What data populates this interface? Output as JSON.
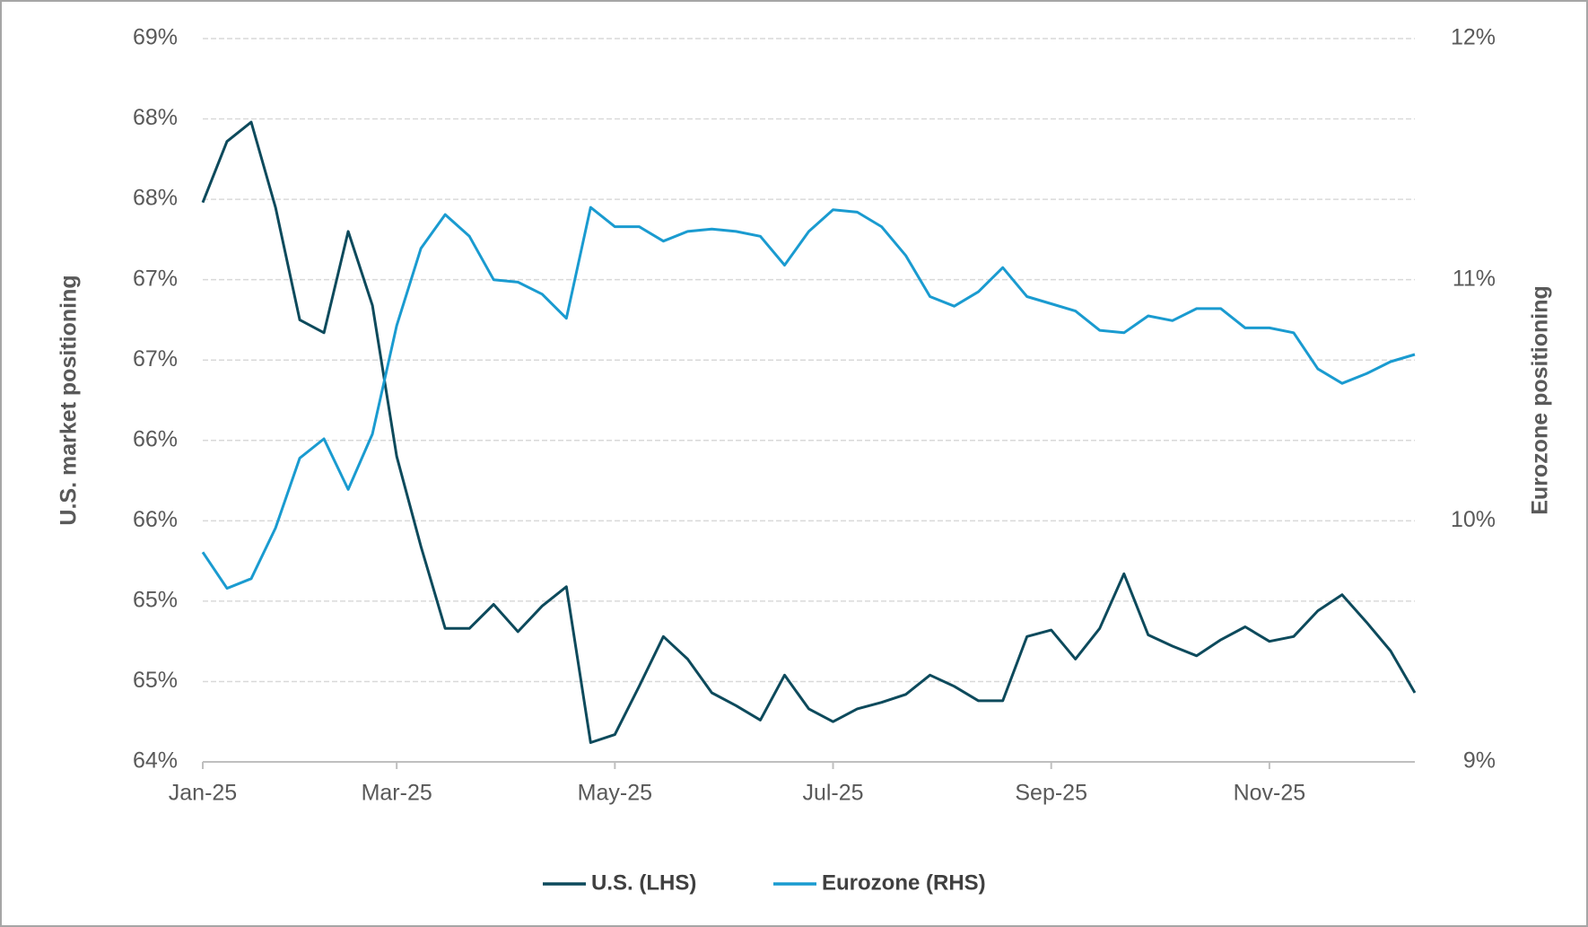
{
  "chart_data": {
    "type": "line",
    "y_label": "U.S. market positioning",
    "y2_label": "Eurozone positioning",
    "categories": [
      "Jan-25",
      null,
      null,
      null,
      null,
      null,
      null,
      null,
      "Mar-25",
      null,
      null,
      null,
      null,
      null,
      null,
      null,
      null,
      "May-25",
      null,
      null,
      null,
      null,
      null,
      null,
      null,
      null,
      "Jul-25",
      null,
      null,
      null,
      null,
      null,
      null,
      null,
      null,
      "Sep-25",
      null,
      null,
      null,
      null,
      null,
      null,
      null,
      null,
      "Nov-25",
      null,
      null,
      null,
      null,
      null,
      null
    ],
    "series": [
      {
        "name": "U.S. (LHS)",
        "color": "#0d4a5c",
        "axis": "y",
        "values": [
          67.48,
          67.86,
          67.98,
          67.45,
          66.75,
          66.67,
          67.3,
          66.84,
          65.9,
          65.34,
          64.83,
          64.83,
          64.98,
          64.81,
          64.97,
          65.09,
          64.12,
          64.17,
          64.47,
          64.78,
          64.64,
          64.43,
          64.35,
          64.26,
          64.54,
          64.33,
          64.25,
          64.33,
          64.37,
          64.42,
          64.54,
          64.47,
          64.38,
          64.38,
          64.78,
          64.82,
          64.64,
          64.83,
          65.17,
          64.79,
          64.72,
          64.66,
          64.76,
          64.84,
          64.75,
          64.78,
          64.94,
          65.04,
          64.87,
          64.69,
          64.43
        ]
      },
      {
        "name": "Eurozone (RHS)",
        "color": "#1a9bd0",
        "axis": "y2",
        "values": [
          9.87,
          9.72,
          9.76,
          9.97,
          10.26,
          10.34,
          10.13,
          10.36,
          10.81,
          11.13,
          11.27,
          11.18,
          11.0,
          10.99,
          10.94,
          10.84,
          11.3,
          11.22,
          11.22,
          11.16,
          11.2,
          11.21,
          11.2,
          11.18,
          11.06,
          11.2,
          11.29,
          11.28,
          11.22,
          11.1,
          10.93,
          10.89,
          10.95,
          11.05,
          10.93,
          10.9,
          10.87,
          10.79,
          10.78,
          10.85,
          10.83,
          10.88,
          10.88,
          10.8,
          10.8,
          10.78,
          10.63,
          10.57,
          10.61,
          10.66,
          10.69
        ]
      }
    ],
    "ylim": [
      64,
      68.5
    ],
    "yticks": [
      {
        "value": 64,
        "label": "64%"
      },
      {
        "value": 64.5,
        "label": "65%"
      },
      {
        "value": 65,
        "label": "65%"
      },
      {
        "value": 65.5,
        "label": "66%"
      },
      {
        "value": 66,
        "label": "66%"
      },
      {
        "value": 66.5,
        "label": "67%"
      },
      {
        "value": 67,
        "label": "67%"
      },
      {
        "value": 67.5,
        "label": "68%"
      },
      {
        "value": 68,
        "label": "68%"
      },
      {
        "value": 68.5,
        "label": "69%"
      }
    ],
    "y2lim": [
      9,
      12
    ],
    "y2ticks": [
      {
        "value": 9,
        "label": "9%"
      },
      {
        "value": 10,
        "label": "10%"
      },
      {
        "value": 11,
        "label": "11%"
      },
      {
        "value": 12,
        "label": "12%"
      }
    ],
    "grid": true,
    "legend": "bottom"
  }
}
